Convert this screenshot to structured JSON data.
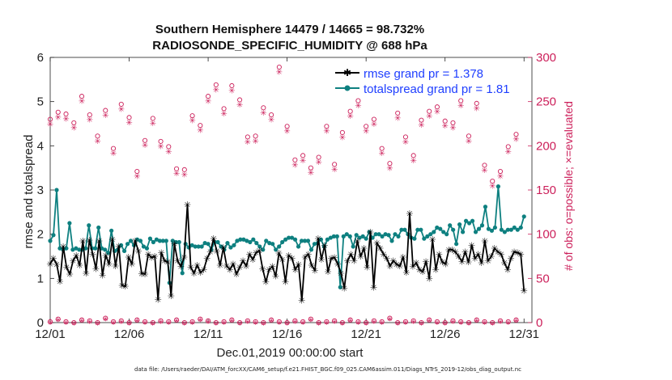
{
  "chart_data": {
    "type": "line",
    "title": "Southern Hemisphere 14479 / 14665 = 98.732%",
    "subtitle": "RADIOSONDE_SPECIFIC_HUMIDITY @ 688 hPa",
    "xlabel": "Dec.01,2019 00:00:00 start",
    "ylabel": "rmse and totalspread",
    "y2label": "# of obs: o=possible; ×=evaluated",
    "xlim": [
      0,
      30.5
    ],
    "ylim": [
      0,
      6
    ],
    "y2lim": [
      0,
      300
    ],
    "x_ticks": [
      0,
      5,
      10,
      15,
      20,
      25,
      30
    ],
    "x_tick_labels": [
      "12/01",
      "12/06",
      "12/11",
      "12/16",
      "12/21",
      "12/26",
      "12/31"
    ],
    "y_ticks": [
      "0",
      "1",
      "2",
      "3",
      "4",
      "5",
      "6"
    ],
    "y2_ticks": [
      "0",
      "50",
      "100",
      "150",
      "200",
      "250",
      "300"
    ],
    "grid": false,
    "legend_position": "top-right",
    "colors": {
      "rmse": "#000000",
      "spread": "#0e8080",
      "obs": "#cc1f5a",
      "legend_text": "#1f3fff"
    },
    "series": [
      {
        "name": "rmse grand pr = 1.378",
        "axis": "left",
        "values": [
          1.33,
          1.45,
          1.32,
          0.93,
          1.72,
          1.25,
          1.1,
          1.4,
          1.52,
          1.3,
          1.85,
          1.12,
          1.87,
          1.55,
          1.22,
          1.85,
          1.07,
          1.52,
          1.33,
          1.88,
          1.28,
          1.73,
          0.84,
          0.82,
          1.48,
          1.33,
          1.85,
          1.62,
          1.11,
          1.1,
          1.55,
          1.47,
          1.5,
          0.52,
          1.58,
          1.4,
          1.37,
          0.6,
          1.78,
          1.4,
          1.27,
          1.48,
          2.67,
          1.25,
          1.12,
          1.3,
          1.13,
          1.2,
          1.45,
          1.6,
          1.9,
          1.62,
          1.3,
          1.7,
          1.28,
          1.2,
          1.33,
          1.1,
          1.25,
          1.4,
          1.28,
          1.55,
          1.43,
          1.58,
          1.63,
          1.22,
          0.92,
          1.2,
          1.27,
          1.05,
          1.57,
          1.43,
          0.92,
          1.52,
          1.45,
          1.2,
          1.32,
          0.5,
          1.48,
          1.55,
          1.3,
          1.18,
          1.9,
          1.43,
          1.75,
          1.15,
          1.45,
          1.47,
          1.33,
          1.12,
          0.78,
          1.4,
          1.55,
          1.4,
          1.85,
          1.5,
          1.68,
          1.25,
          2.05,
          0.8,
          1.8,
          1.68,
          1.55,
          1.45,
          1.28,
          1.4,
          1.32,
          1.28,
          1.48,
          1.13,
          2.47,
          1.27,
          1.35,
          1.2,
          1.15,
          1.38,
          1.0,
          1.88,
          1.2,
          1.55,
          1.37,
          1.33,
          1.65,
          1.65,
          1.6,
          1.5,
          1.38,
          1.6,
          1.37,
          1.75,
          1.45,
          1.55,
          1.35,
          1.85,
          1.4,
          1.5,
          1.68,
          1.6,
          1.55,
          1.35,
          1.2,
          1.45,
          1.6,
          1.58,
          1.55,
          0.72
        ]
      },
      {
        "name": "totalspread grand pr = 1.81",
        "axis": "left",
        "values": [
          1.85,
          1.98,
          3.0,
          1.68,
          1.65,
          1.68,
          2.25,
          1.65,
          1.68,
          1.65,
          1.65,
          1.68,
          2.2,
          1.68,
          1.68,
          2.15,
          1.68,
          1.65,
          1.58,
          2.08,
          1.62,
          1.65,
          1.75,
          1.62,
          1.78,
          1.85,
          1.75,
          1.88,
          1.85,
          1.72,
          1.68,
          1.9,
          1.82,
          1.88,
          1.85,
          1.85,
          1.85,
          0.9,
          1.85,
          1.82,
          1.82,
          1.12,
          1.78,
          1.7,
          1.75,
          1.72,
          1.72,
          1.72,
          1.8,
          1.78,
          1.65,
          1.82,
          1.82,
          1.72,
          1.65,
          1.8,
          1.7,
          1.75,
          1.85,
          1.88,
          1.88,
          1.85,
          1.82,
          1.88,
          1.8,
          1.72,
          1.65,
          1.85,
          1.8,
          1.78,
          1.65,
          1.72,
          1.82,
          1.88,
          1.92,
          1.92,
          1.88,
          1.72,
          1.85,
          1.85,
          1.85,
          1.65,
          1.78,
          1.8,
          1.88,
          1.72,
          1.88,
          1.92,
          1.95,
          1.95,
          0.8,
          1.95,
          2.0,
          1.95,
          1.72,
          1.98,
          1.92,
          1.95,
          1.9,
          2.05,
          1.92,
          2.0,
          2.0,
          1.95,
          2.0,
          1.98,
          1.85,
          2.0,
          1.95,
          2.1,
          2.1,
          2.0,
          1.92,
          1.9,
          2.1,
          2.1,
          1.9,
          1.95,
          2.0,
          2.05,
          2.15,
          2.12,
          2.05,
          2.0,
          2.2,
          2.1,
          1.78,
          2.22,
          2.05,
          2.3,
          2.25,
          2.3,
          2.05,
          2.12,
          2.2,
          2.62,
          2.12,
          2.08,
          2.15,
          3.08,
          2.1,
          2.05,
          2.1,
          2.1,
          2.15,
          2.1,
          2.15,
          2.4
        ]
      }
    ],
    "obs_possible": [
      230,
      238,
      236,
      226,
      256,
      235,
      211,
      240,
      197,
      247,
      232,
      171,
      206,
      231,
      205,
      199,
      174,
      173,
      234,
      223,
      256,
      269,
      242,
      268,
      252,
      210,
      211,
      243,
      235,
      289,
      222,
      184,
      189,
      175,
      187,
      222,
      179,
      215,
      239,
      251,
      222,
      230,
      197,
      180,
      237,
      210,
      189,
      229,
      239,
      244,
      228,
      226,
      251,
      211,
      248,
      178,
      160,
      171,
      199,
      213
    ],
    "obs_evaluated": [
      1,
      4,
      1,
      0,
      3,
      2,
      0,
      5,
      1,
      2,
      0,
      3,
      1,
      0,
      2,
      1,
      3,
      0,
      1,
      4,
      2,
      0,
      1,
      3,
      0,
      2,
      1,
      0,
      3,
      1,
      0,
      2,
      1,
      4,
      0,
      1,
      2,
      0,
      3,
      1,
      0,
      2,
      1,
      5,
      0,
      1,
      2,
      0,
      3,
      1,
      0,
      2,
      1,
      0,
      3,
      1,
      0,
      2,
      1,
      3
    ]
  }
}
